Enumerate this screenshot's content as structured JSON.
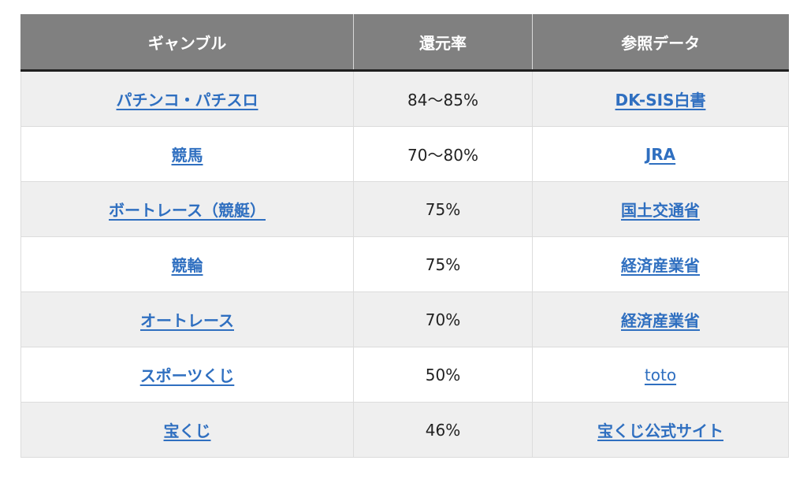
{
  "table": {
    "headers": [
      "ギャンブル",
      "還元率",
      "参照データ"
    ],
    "rows": [
      {
        "gamble": "パチンコ・パチスロ",
        "rate": "84〜85%",
        "source": "DK-SIS白書"
      },
      {
        "gamble": "競馬",
        "rate": "70〜80%",
        "source": "JRA"
      },
      {
        "gamble": "ボートレース（競艇）",
        "rate": "75%",
        "source": "国土交通省"
      },
      {
        "gamble": "競輪",
        "rate": "75%",
        "source": "経済産業省"
      },
      {
        "gamble": "オートレース",
        "rate": "70%",
        "source": "経済産業省"
      },
      {
        "gamble": "スポーツくじ",
        "rate": "50%",
        "source": "toto"
      },
      {
        "gamble": "宝くじ",
        "rate": "46%",
        "source": "宝くじ公式サイト"
      }
    ]
  },
  "colors": {
    "header_bg": "#808080",
    "header_text": "#ffffff",
    "link": "#2f6fc0",
    "row_alt": "#efefef",
    "header_rule": "#1f1f1f"
  }
}
